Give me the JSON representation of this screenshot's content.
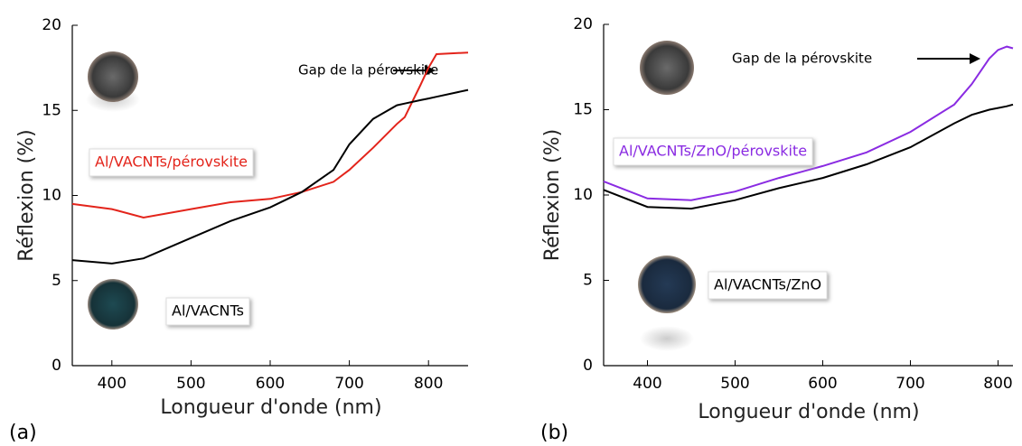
{
  "chart_data": [
    {
      "type": "line",
      "panel_label": "(a)",
      "ylabel": "Réflexion (%)",
      "xlabel": "Longueur d'onde (nm)",
      "annotation": "Gap de la pérovskite",
      "xlim": [
        350,
        850
      ],
      "ylim": [
        0,
        20
      ],
      "xticks": [
        400,
        500,
        600,
        700,
        800
      ],
      "yticks": [
        0,
        5,
        10,
        15,
        20
      ],
      "x": [
        350,
        400,
        440,
        500,
        550,
        600,
        640,
        680,
        700,
        730,
        760,
        770,
        790,
        800,
        810,
        850
      ],
      "series": [
        {
          "name": "Al/VACNTs/pérovskite",
          "color": "#e3241b",
          "values": [
            9.5,
            9.2,
            8.7,
            9.2,
            9.6,
            9.8,
            10.2,
            10.8,
            11.5,
            12.8,
            14.2,
            14.6,
            16.5,
            17.5,
            18.3,
            18.4
          ]
        },
        {
          "name": "Al/VACNTs",
          "color": "#000000",
          "values": [
            6.2,
            6.0,
            6.3,
            7.5,
            8.5,
            9.3,
            10.2,
            11.5,
            13.0,
            14.5,
            15.3,
            15.4,
            15.6,
            15.7,
            15.8,
            16.2
          ]
        }
      ]
    },
    {
      "type": "line",
      "panel_label": "(b)",
      "ylabel": "Réflexion (%)",
      "xlabel": "Longueur d'onde (nm)",
      "annotation": "Gap de la pérovskite",
      "xlim": [
        350,
        817
      ],
      "ylim": [
        0,
        20
      ],
      "xticks": [
        400,
        500,
        600,
        700,
        800
      ],
      "yticks": [
        0,
        5,
        10,
        15,
        20
      ],
      "x": [
        350,
        400,
        450,
        500,
        550,
        600,
        650,
        700,
        750,
        770,
        790,
        800,
        810,
        817
      ],
      "series": [
        {
          "name": "Al/VACNTs/ZnO/pérovskite",
          "color": "#8a2be2",
          "values": [
            10.8,
            9.8,
            9.7,
            10.2,
            11.0,
            11.7,
            12.5,
            13.7,
            15.3,
            16.5,
            18.0,
            18.5,
            18.7,
            18.6
          ]
        },
        {
          "name": "Al/VACNTs/ZnO",
          "color": "#000000",
          "values": [
            10.3,
            9.3,
            9.2,
            9.7,
            10.4,
            11.0,
            11.8,
            12.8,
            14.2,
            14.7,
            15.0,
            15.1,
            15.2,
            15.3
          ]
        }
      ]
    }
  ]
}
